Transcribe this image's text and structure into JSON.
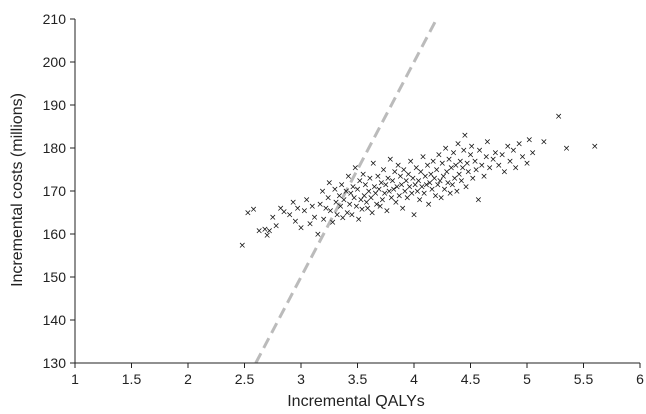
{
  "chart_data": {
    "type": "scatter",
    "title": "",
    "xlabel": "Incremental QALYs",
    "ylabel": "Incremental costs (millions)",
    "xlim": [
      1,
      6
    ],
    "ylim": [
      130,
      210
    ],
    "x_ticks": [
      "1",
      "1.5",
      "2",
      "2.5",
      "3",
      "3.5",
      "4",
      "4.5",
      "5",
      "5.5",
      "6"
    ],
    "y_ticks": [
      "130",
      "140",
      "150",
      "160",
      "170",
      "180",
      "190",
      "200",
      "210"
    ],
    "grid": false,
    "legend": "none",
    "marker": "×",
    "series": [
      {
        "points": [
          [
            2.48,
            157.5
          ],
          [
            2.53,
            165.0
          ],
          [
            2.58,
            165.8
          ],
          [
            2.63,
            160.8
          ],
          [
            2.68,
            161.2
          ],
          [
            2.7,
            159.8
          ],
          [
            2.72,
            160.8
          ],
          [
            2.75,
            164.0
          ],
          [
            2.78,
            162.0
          ],
          [
            2.82,
            166.0
          ],
          [
            2.85,
            165.2
          ],
          [
            2.9,
            164.5
          ],
          [
            2.93,
            167.5
          ],
          [
            2.95,
            163.0
          ],
          [
            2.97,
            166.0
          ],
          [
            3.0,
            161.5
          ],
          [
            3.03,
            165.5
          ],
          [
            3.05,
            168.0
          ],
          [
            3.08,
            162.5
          ],
          [
            3.1,
            166.5
          ],
          [
            3.12,
            164.0
          ],
          [
            3.15,
            160.0
          ],
          [
            3.17,
            167.0
          ],
          [
            3.19,
            170.0
          ],
          [
            3.2,
            163.5
          ],
          [
            3.22,
            166.0
          ],
          [
            3.24,
            168.5
          ],
          [
            3.25,
            172.0
          ],
          [
            3.26,
            165.5
          ],
          [
            3.28,
            162.8
          ],
          [
            3.3,
            170.5
          ],
          [
            3.31,
            167.5
          ],
          [
            3.32,
            164.5
          ],
          [
            3.34,
            169.0
          ],
          [
            3.35,
            166.5
          ],
          [
            3.36,
            171.5
          ],
          [
            3.37,
            163.8
          ],
          [
            3.38,
            168.0
          ],
          [
            3.4,
            170.0
          ],
          [
            3.41,
            165.0
          ],
          [
            3.42,
            173.5
          ],
          [
            3.43,
            167.0
          ],
          [
            3.44,
            169.5
          ],
          [
            3.45,
            164.5
          ],
          [
            3.46,
            171.0
          ],
          [
            3.47,
            168.5
          ],
          [
            3.48,
            175.5
          ],
          [
            3.49,
            166.5
          ],
          [
            3.5,
            170.5
          ],
          [
            3.51,
            163.5
          ],
          [
            3.52,
            172.5
          ],
          [
            3.53,
            168.0
          ],
          [
            3.54,
            165.8
          ],
          [
            3.55,
            174.0
          ],
          [
            3.56,
            169.0
          ],
          [
            3.57,
            171.5
          ],
          [
            3.58,
            167.5
          ],
          [
            3.59,
            166.0
          ],
          [
            3.6,
            170.0
          ],
          [
            3.61,
            173.0
          ],
          [
            3.62,
            168.5
          ],
          [
            3.63,
            165.0
          ],
          [
            3.64,
            176.5
          ],
          [
            3.65,
            171.0
          ],
          [
            3.66,
            169.5
          ],
          [
            3.67,
            167.0
          ],
          [
            3.68,
            173.5
          ],
          [
            3.69,
            170.5
          ],
          [
            3.7,
            166.5
          ],
          [
            3.71,
            172.0
          ],
          [
            3.72,
            168.0
          ],
          [
            3.73,
            175.0
          ],
          [
            3.74,
            169.5
          ],
          [
            3.75,
            171.5
          ],
          [
            3.76,
            165.5
          ],
          [
            3.77,
            173.0
          ],
          [
            3.78,
            170.0
          ],
          [
            3.79,
            177.5
          ],
          [
            3.8,
            168.5
          ],
          [
            3.81,
            172.5
          ],
          [
            3.82,
            170.5
          ],
          [
            3.83,
            174.5
          ],
          [
            3.84,
            167.5
          ],
          [
            3.85,
            171.0
          ],
          [
            3.86,
            176.0
          ],
          [
            3.87,
            169.0
          ],
          [
            3.88,
            173.5
          ],
          [
            3.89,
            171.5
          ],
          [
            3.9,
            166.0
          ],
          [
            3.91,
            175.0
          ],
          [
            3.92,
            170.0
          ],
          [
            3.93,
            172.5
          ],
          [
            3.94,
            168.5
          ],
          [
            3.95,
            174.0
          ],
          [
            3.96,
            171.0
          ],
          [
            3.97,
            177.0
          ],
          [
            3.98,
            169.5
          ],
          [
            3.99,
            173.0
          ],
          [
            4.0,
            164.5
          ],
          [
            4.01,
            171.5
          ],
          [
            4.02,
            175.5
          ],
          [
            4.03,
            170.0
          ],
          [
            4.04,
            172.5
          ],
          [
            4.05,
            168.0
          ],
          [
            4.06,
            174.5
          ],
          [
            4.07,
            171.0
          ],
          [
            4.08,
            178.0
          ],
          [
            4.09,
            169.5
          ],
          [
            4.1,
            173.5
          ],
          [
            4.11,
            171.5
          ],
          [
            4.12,
            176.0
          ],
          [
            4.13,
            167.0
          ],
          [
            4.14,
            172.0
          ],
          [
            4.15,
            174.0
          ],
          [
            4.16,
            170.5
          ],
          [
            4.17,
            177.0
          ],
          [
            4.18,
            173.0
          ],
          [
            4.19,
            169.0
          ],
          [
            4.2,
            175.0
          ],
          [
            4.21,
            171.5
          ],
          [
            4.22,
            178.5
          ],
          [
            4.23,
            172.5
          ],
          [
            4.24,
            168.5
          ],
          [
            4.25,
            176.5
          ],
          [
            4.26,
            173.5
          ],
          [
            4.27,
            170.5
          ],
          [
            4.28,
            180.0
          ],
          [
            4.29,
            174.5
          ],
          [
            4.3,
            172.0
          ],
          [
            4.31,
            177.5
          ],
          [
            4.32,
            169.5
          ],
          [
            4.33,
            175.5
          ],
          [
            4.34,
            171.5
          ],
          [
            4.35,
            179.0
          ],
          [
            4.36,
            173.0
          ],
          [
            4.37,
            176.0
          ],
          [
            4.38,
            170.0
          ],
          [
            4.39,
            181.0
          ],
          [
            4.4,
            174.0
          ],
          [
            4.41,
            177.0
          ],
          [
            4.42,
            172.5
          ],
          [
            4.43,
            175.5
          ],
          [
            4.44,
            179.5
          ],
          [
            4.45,
            183.0
          ],
          [
            4.46,
            171.0
          ],
          [
            4.47,
            176.5
          ],
          [
            4.48,
            174.5
          ],
          [
            4.5,
            178.5
          ],
          [
            4.51,
            180.5
          ],
          [
            4.52,
            173.0
          ],
          [
            4.54,
            177.0
          ],
          [
            4.55,
            175.0
          ],
          [
            4.57,
            168.0
          ],
          [
            4.58,
            179.5
          ],
          [
            4.6,
            176.0
          ],
          [
            4.62,
            173.5
          ],
          [
            4.64,
            178.0
          ],
          [
            4.65,
            181.5
          ],
          [
            4.67,
            175.5
          ],
          [
            4.7,
            177.5
          ],
          [
            4.72,
            179.0
          ],
          [
            4.75,
            176.0
          ],
          [
            4.78,
            178.5
          ],
          [
            4.8,
            174.5
          ],
          [
            4.83,
            180.5
          ],
          [
            4.85,
            177.0
          ],
          [
            4.88,
            179.5
          ],
          [
            4.9,
            175.5
          ],
          [
            4.93,
            181.0
          ],
          [
            4.96,
            178.0
          ],
          [
            5.0,
            176.5
          ],
          [
            5.02,
            182.0
          ],
          [
            5.05,
            179.0
          ],
          [
            5.15,
            181.5
          ],
          [
            5.28,
            187.5
          ],
          [
            5.35,
            180.0
          ],
          [
            5.6,
            180.5
          ]
        ]
      }
    ],
    "reference_line": {
      "style": "dashed",
      "color": "#bbbbbb",
      "from": [
        2.6,
        130
      ],
      "to": [
        4.2,
        210
      ]
    }
  }
}
